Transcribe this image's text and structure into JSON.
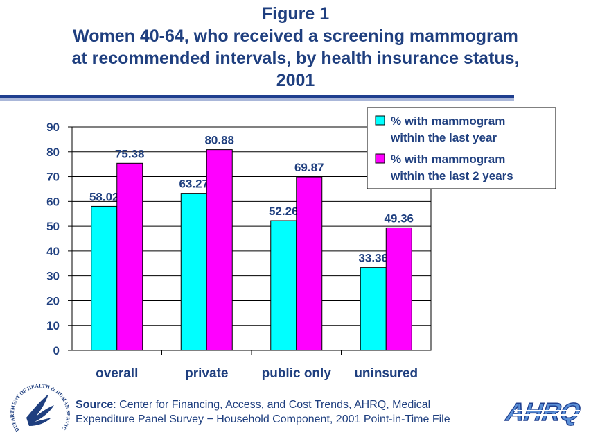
{
  "title": {
    "line1": "Figure 1",
    "line2": "Women 40-64, who received a screening mammogram",
    "line3": "at recommended intervals, by health insurance status,",
    "line4": "2001"
  },
  "colors": {
    "title": "#1f3f7f",
    "series1": "#00ffff",
    "series2": "#ff00ff",
    "text": "#1f3f7f"
  },
  "chart_data": {
    "type": "bar",
    "categories": [
      "overall",
      "private",
      "public only",
      "uninsured"
    ],
    "series": [
      {
        "name_lines": [
          "% with mammogram",
          "within the last year"
        ],
        "values": [
          58.02,
          63.27,
          52.26,
          33.36
        ],
        "labels": [
          "58.02",
          "63.27",
          "52.26",
          "33.36"
        ]
      },
      {
        "name_lines": [
          "% with mammogram",
          "within the last 2 years"
        ],
        "values": [
          75.38,
          80.88,
          69.87,
          49.36
        ],
        "labels": [
          "75.38",
          "80.88",
          "69.87",
          "49.36"
        ]
      }
    ],
    "yticks": [
      "0",
      "10",
      "20",
      "30",
      "40",
      "50",
      "60",
      "70",
      "80",
      "90"
    ],
    "ylim": [
      0,
      90
    ],
    "grid": true,
    "legend": "top-right"
  },
  "footer": {
    "source_label": "Source",
    "source_line1": ": Center for Financing, Access, and Cost Trends, AHRQ, Medical",
    "source_line2": "Expenditure Panel Survey − Household Component, 2001 Point-in-Time File",
    "hhs_seal_text": "DEPARTMENT OF HEALTH & HUMAN SERVICES·USA",
    "ahrq_logo_text": "AHRQ"
  }
}
